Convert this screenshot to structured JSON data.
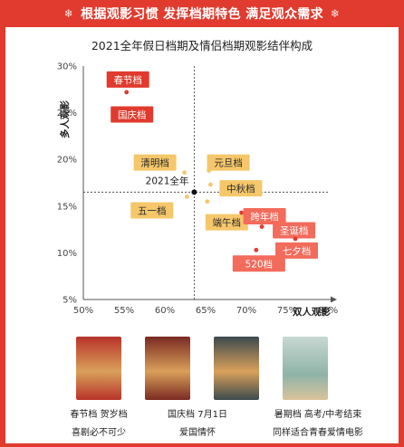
{
  "banner": {
    "text": "根据观影习惯 发挥档期特色 满足观众需求",
    "left_icon": "snowflake-icon",
    "right_icon": "snowflake-icon",
    "color": "#e03b2e"
  },
  "chart_data": {
    "type": "scatter",
    "title": "2021全年假日档期及情侣档期观影结伴构成",
    "xlabel": "双人观影",
    "ylabel": "多人观影",
    "xlim": [
      0.5,
      0.8
    ],
    "ylim": [
      0.05,
      0.3
    ],
    "x_ticks": [
      0.5,
      0.55,
      0.6,
      0.65,
      0.7,
      0.75,
      0.8
    ],
    "x_tick_labels": [
      "50%",
      "55%",
      "60%",
      "65%",
      "70%",
      "75%",
      "80%"
    ],
    "y_ticks": [
      0.05,
      0.1,
      0.15,
      0.2,
      0.25,
      0.3
    ],
    "y_tick_labels": [
      "5%",
      "10%",
      "15%",
      "20%",
      "25%",
      "30%"
    ],
    "reference": {
      "name": "2021全年",
      "x": 0.636,
      "y": 0.165
    },
    "colors": {
      "holiday": "#e03b2e",
      "normal": "#f5c76a",
      "valentine_label_bg": "#f26b5b"
    },
    "points": [
      {
        "name": "春节档",
        "x": 0.553,
        "y": 0.272,
        "group": "holiday"
      },
      {
        "name": "国庆档",
        "x": 0.558,
        "y": 0.254,
        "group": "holiday"
      },
      {
        "name": "清明档",
        "x": 0.624,
        "y": 0.186,
        "group": "normal"
      },
      {
        "name": "元旦档",
        "x": 0.654,
        "y": 0.188,
        "group": "normal"
      },
      {
        "name": "中秋档",
        "x": 0.656,
        "y": 0.173,
        "group": "normal"
      },
      {
        "name": "五一档",
        "x": 0.627,
        "y": 0.16,
        "group": "normal"
      },
      {
        "name": "端午档",
        "x": 0.652,
        "y": 0.155,
        "group": "normal"
      },
      {
        "name": "跨年档",
        "x": 0.694,
        "y": 0.143,
        "group": "valentine"
      },
      {
        "name": "圣诞档",
        "x": 0.719,
        "y": 0.128,
        "group": "valentine"
      },
      {
        "name": "七夕档",
        "x": 0.76,
        "y": 0.115,
        "group": "valentine"
      },
      {
        "name": "520档",
        "x": 0.712,
        "y": 0.103,
        "group": "valentine"
      }
    ]
  },
  "movies": [
    {
      "poster_color": "#b8332a",
      "caption_line1": "春节档 贺岁档",
      "caption_line2": "喜剧必不可少"
    },
    {
      "poster_color": "#7a2a22",
      "caption_line1": "国庆档 7月1日",
      "caption_line2": "爱国情怀"
    },
    {
      "poster_color": "#3c4a4e",
      "caption_line1": "暑期档 高考/中考结束",
      "caption_line2": "同样适合青春爱情电影"
    }
  ]
}
